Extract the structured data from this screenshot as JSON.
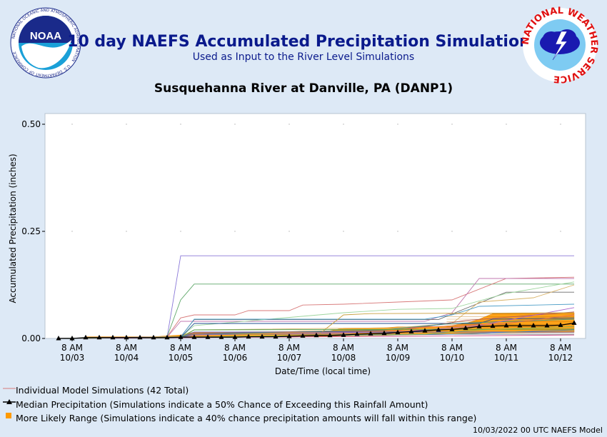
{
  "header": {
    "title": "10 day NAEFS Accumulated Precipitation Simulations",
    "subtitle": "Used as Input to the River Level Simulations",
    "station": "Susquehanna River at Danville, PA (DANP1)"
  },
  "logos": {
    "noaa_text": "NOAA",
    "noaa_ring": "NATIONAL OCEANIC AND ATMOSPHERIC ADMINISTRATION",
    "noaa_ring_bottom": "U.S. DEPARTMENT OF COMMERCE",
    "nws_ring": "NATIONAL WEATHER SERVICE"
  },
  "legend": {
    "individual": "Individual Model Simulations (42 Total)",
    "median": "Median Precipitation (Simulations indicate a 50% Chance of Exceeding this Rainfall Amount)",
    "range": "More Likely Range (Simulations indicate a 40% chance precipitation amounts will fall within this range)"
  },
  "footer": "10/03/2022 00 UTC NAEFS Model",
  "colors": {
    "background": "#dde9f6",
    "title": "#0a1a8c",
    "median": "#000000",
    "range_fill": "#ff9a00",
    "range_fill_light": "#ffb84d"
  },
  "chart_data": {
    "type": "line",
    "xlabel": "Date/Time (local time)",
    "ylabel": "Accumulated Precipitation (inches)",
    "ylim": [
      0,
      0.5
    ],
    "yticks": [
      "0.00",
      "0.25",
      "0.50"
    ],
    "xlim_days": [
      -0.3,
      9.3
    ],
    "x_ticks": [
      {
        "l1": "8 AM",
        "l2": "10/03"
      },
      {
        "l1": "8 AM",
        "l2": "10/04"
      },
      {
        "l1": "8 AM",
        "l2": "10/05"
      },
      {
        "l1": "8 AM",
        "l2": "10/06"
      },
      {
        "l1": "8 AM",
        "l2": "10/07"
      },
      {
        "l1": "8 AM",
        "l2": "10/08"
      },
      {
        "l1": "8 AM",
        "l2": "10/09"
      },
      {
        "l1": "8 AM",
        "l2": "10/10"
      },
      {
        "l1": "8 AM",
        "l2": "10/11"
      },
      {
        "l1": "8 AM",
        "l2": "10/12"
      }
    ],
    "median_x": [
      -0.25,
      0.0,
      0.25,
      0.5,
      0.75,
      1.0,
      1.25,
      1.5,
      1.75,
      2.0,
      2.25,
      2.5,
      2.75,
      3.0,
      3.25,
      3.5,
      3.75,
      4.0,
      4.25,
      4.5,
      4.75,
      5.0,
      5.25,
      5.5,
      5.75,
      6.0,
      6.25,
      6.5,
      6.75,
      7.0,
      7.25,
      7.5,
      7.75,
      8.0,
      8.25,
      8.5,
      8.75,
      9.0,
      9.25
    ],
    "median_y": [
      0.0,
      0.0,
      0.002,
      0.002,
      0.002,
      0.002,
      0.002,
      0.002,
      0.002,
      0.003,
      0.003,
      0.003,
      0.003,
      0.003,
      0.004,
      0.004,
      0.004,
      0.005,
      0.006,
      0.007,
      0.007,
      0.008,
      0.01,
      0.011,
      0.012,
      0.014,
      0.016,
      0.018,
      0.02,
      0.021,
      0.024,
      0.028,
      0.029,
      0.03,
      0.03,
      0.03,
      0.03,
      0.031,
      0.036
    ],
    "range_x": [
      0.25,
      1.5,
      1.75,
      2.0,
      2.25,
      4.0,
      4.25,
      4.75,
      5.0,
      5.75,
      6.0,
      6.75,
      7.0,
      7.25,
      7.5,
      7.75,
      9.25
    ],
    "range_low": [
      0.001,
      0.001,
      0.001,
      0.002,
      0.003,
      0.003,
      0.004,
      0.005,
      0.006,
      0.007,
      0.008,
      0.009,
      0.01,
      0.011,
      0.012,
      0.013,
      0.014
    ],
    "range_high": [
      0.004,
      0.004,
      0.006,
      0.008,
      0.015,
      0.016,
      0.017,
      0.018,
      0.024,
      0.025,
      0.027,
      0.028,
      0.03,
      0.035,
      0.045,
      0.058,
      0.06
    ],
    "simulations": [
      {
        "color": "#8a78d8",
        "x": [
          -0.25,
          1.5,
          1.75,
          2.0,
          9.25
        ],
        "y": [
          0.0,
          0.003,
          0.003,
          0.193,
          0.193
        ]
      },
      {
        "color": "#5fa86a",
        "x": [
          -0.25,
          1.75,
          2.0,
          2.25,
          9.25
        ],
        "y": [
          0.0,
          0.004,
          0.09,
          0.127,
          0.127
        ]
      },
      {
        "color": "#d87a7a",
        "x": [
          -0.25,
          1.75,
          2.0,
          2.25,
          3.0,
          3.25,
          4.0,
          4.25,
          5.0,
          6.0,
          7.0,
          8.0,
          9.25
        ],
        "y": [
          0.0,
          0.004,
          0.048,
          0.055,
          0.055,
          0.065,
          0.065,
          0.078,
          0.08,
          0.085,
          0.09,
          0.14,
          0.143
        ]
      },
      {
        "color": "#c07ab0",
        "x": [
          -0.25,
          1.75,
          2.0,
          6.5,
          7.0,
          7.5,
          9.25
        ],
        "y": [
          0.0,
          0.003,
          0.04,
          0.04,
          0.06,
          0.14,
          0.14
        ]
      },
      {
        "color": "#6a6a6a",
        "x": [
          -0.25,
          2.0,
          2.25,
          6.75,
          7.25,
          8.0,
          9.25
        ],
        "y": [
          0.0,
          0.004,
          0.044,
          0.044,
          0.07,
          0.108,
          0.108
        ]
      },
      {
        "color": "#9fd69f",
        "x": [
          -0.25,
          2.0,
          2.25,
          5.0,
          6.0,
          7.0,
          8.0,
          9.25
        ],
        "y": [
          0.0,
          0.003,
          0.03,
          0.06,
          0.068,
          0.07,
          0.105,
          0.132
        ]
      },
      {
        "color": "#d9b36a",
        "x": [
          -0.25,
          2.0,
          2.25,
          6.0,
          7.0,
          7.5,
          8.5,
          9.25
        ],
        "y": [
          0.0,
          0.004,
          0.02,
          0.025,
          0.035,
          0.085,
          0.095,
          0.125
        ]
      },
      {
        "color": "#4f9fc8",
        "x": [
          -0.25,
          2.0,
          2.25,
          6.5,
          7.0,
          7.5,
          9.25
        ],
        "y": [
          0.0,
          0.003,
          0.045,
          0.045,
          0.055,
          0.075,
          0.08
        ]
      },
      {
        "color": "#1f4f8f",
        "x": [
          -0.25,
          2.0,
          2.25,
          7.5,
          7.75,
          9.25
        ],
        "y": [
          0.0,
          0.002,
          0.035,
          0.035,
          0.045,
          0.048
        ]
      },
      {
        "color": "#b25a5a",
        "x": [
          -0.25,
          2.0,
          2.25,
          6.0,
          7.25,
          9.25
        ],
        "y": [
          0.0,
          0.003,
          0.012,
          0.018,
          0.042,
          0.062
        ]
      },
      {
        "color": "#3a8a8a",
        "x": [
          -0.25,
          2.0,
          2.25,
          5.75,
          7.0,
          9.25
        ],
        "y": [
          0.0,
          0.003,
          0.01,
          0.02,
          0.035,
          0.045
        ]
      },
      {
        "color": "#aa66cc",
        "x": [
          -0.25,
          2.0,
          2.25,
          6.0,
          7.5,
          9.25
        ],
        "y": [
          0.0,
          0.002,
          0.008,
          0.015,
          0.03,
          0.072
        ]
      },
      {
        "color": "#c8a040",
        "x": [
          -0.25,
          4.5,
          5.0,
          5.5,
          9.25
        ],
        "y": [
          0.0,
          0.005,
          0.055,
          0.058,
          0.06
        ]
      },
      {
        "color": "#e07050",
        "x": [
          -0.25,
          5.75,
          6.25,
          8.0,
          9.25
        ],
        "y": [
          0.0,
          0.008,
          0.025,
          0.035,
          0.055
        ]
      },
      {
        "color": "#6060c0",
        "x": [
          -0.25,
          2.0,
          2.25,
          9.25
        ],
        "y": [
          0.0,
          0.002,
          0.015,
          0.015
        ]
      },
      {
        "color": "#50a050",
        "x": [
          -0.25,
          2.0,
          2.25,
          9.25
        ],
        "y": [
          0.0,
          0.002,
          0.02,
          0.022
        ]
      },
      {
        "color": "#808080",
        "x": [
          -0.25,
          2.0,
          2.25,
          9.25
        ],
        "y": [
          0.0,
          0.002,
          0.01,
          0.01
        ]
      },
      {
        "color": "#d05090",
        "x": [
          -0.25,
          6.0,
          9.25
        ],
        "y": [
          0.0,
          0.005,
          0.008
        ]
      },
      {
        "color": "#4080c0",
        "x": [
          -0.25,
          7.0,
          9.25
        ],
        "y": [
          0.0,
          0.01,
          0.02
        ]
      },
      {
        "color": "#90b050",
        "x": [
          -0.25,
          6.5,
          7.5,
          9.25
        ],
        "y": [
          0.0,
          0.01,
          0.02,
          0.028
        ]
      }
    ]
  }
}
